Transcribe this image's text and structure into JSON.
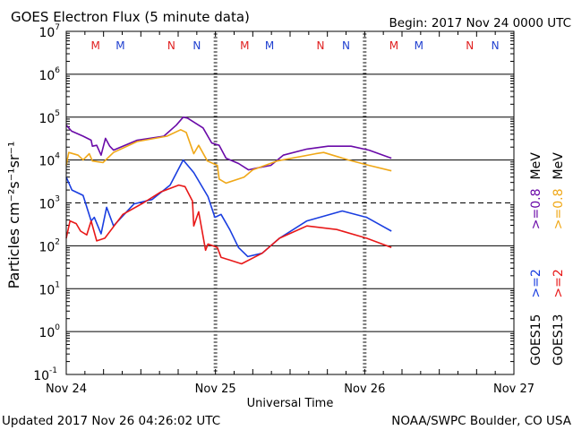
{
  "chart_data": {
    "type": "line",
    "title": "GOES Electron Flux (5 minute data)",
    "begin_label": "Begin: 2017 Nov 24 0000 UTC",
    "xlabel": "Universal Time",
    "ylabel": "Particles cm⁻²s⁻¹sr⁻¹",
    "x_unit": "hours since 2017 Nov 24 0000 UTC",
    "xlim": [
      0,
      72
    ],
    "ylim": [
      0.1,
      10000000
    ],
    "yscale": "log",
    "x_ticks": [
      {
        "hour": 0,
        "label": "Nov 24"
      },
      {
        "hour": 24,
        "label": "Nov 25"
      },
      {
        "hour": 48,
        "label": "Nov 26"
      },
      {
        "hour": 72,
        "label": "Nov 27"
      }
    ],
    "y_ticks": [
      {
        "exp": 7,
        "base": "10",
        "sup": "7"
      },
      {
        "exp": 6,
        "base": "10",
        "sup": "6"
      },
      {
        "exp": 5,
        "base": "10",
        "sup": "5"
      },
      {
        "exp": 4,
        "base": "10",
        "sup": "4"
      },
      {
        "exp": 3,
        "base": "10",
        "sup": "3"
      },
      {
        "exp": 2,
        "base": "10",
        "sup": "2"
      },
      {
        "exp": 1,
        "base": "10",
        "sup": "1"
      },
      {
        "exp": 0,
        "base": "10",
        "sup": "0"
      },
      {
        "exp": -1,
        "base": "10",
        "sup": "-1"
      }
    ],
    "solid_gridlines_exp": [
      6,
      5,
      4,
      2,
      1,
      0
    ],
    "dashed_gridlines_exp": [
      3
    ],
    "markers": [
      {
        "label": "M",
        "hour": 4.7,
        "color": "#e02020"
      },
      {
        "label": "M",
        "hour": 8.7,
        "color": "#2040d0"
      },
      {
        "label": "N",
        "hour": 16.9,
        "color": "#e02020"
      },
      {
        "label": "N",
        "hour": 21.0,
        "color": "#2040d0"
      },
      {
        "label": "M",
        "hour": 28.7,
        "color": "#e02020"
      },
      {
        "label": "M",
        "hour": 32.7,
        "color": "#2040d0"
      },
      {
        "label": "N",
        "hour": 40.9,
        "color": "#e02020"
      },
      {
        "label": "N",
        "hour": 45.0,
        "color": "#2040d0"
      },
      {
        "label": "M",
        "hour": 52.7,
        "color": "#e02020"
      },
      {
        "label": "M",
        "hour": 56.7,
        "color": "#2040d0"
      },
      {
        "label": "N",
        "hour": 64.9,
        "color": "#e02020"
      },
      {
        "label": "N",
        "hour": 69.0,
        "color": "#2040d0"
      }
    ],
    "series": [
      {
        "name": "GOES15 >=0.8 MeV",
        "color": "#6a0aa8",
        "x": [
          0,
          0.86,
          2.7,
          4.0,
          4.2,
          4.9,
          5.6,
          6.3,
          7.0,
          7.6,
          11.4,
          15.7,
          17.7,
          18.8,
          19.5,
          22.0,
          23.4,
          24.6,
          25.7,
          27.7,
          29.3,
          30.6,
          32.9,
          34.9,
          38.7,
          42.1,
          45.8,
          48.7,
          52.3
        ],
        "y": [
          65000.0,
          47000.0,
          36000.0,
          29000.0,
          21000.0,
          22000.0,
          13000.0,
          32000.0,
          21000.0,
          17000.0,
          29000.0,
          36000.0,
          65000.0,
          100000.0,
          95000.0,
          56000.0,
          25000.0,
          22000.0,
          11000.0,
          8300.0,
          5900.0,
          6500.0,
          7500.0,
          13000.0,
          18000.0,
          21000.0,
          21000.0,
          17000.0,
          11000.0
        ]
      },
      {
        "name": "GOES13 >=0.8 MeV",
        "color": "#f0a818",
        "x": [
          0,
          0.4,
          1.9,
          2.7,
          3.7,
          4.2,
          5.9,
          7.6,
          11.4,
          16.2,
          18.4,
          19.3,
          20.5,
          21.3,
          22.7,
          24.3,
          24.6,
          25.7,
          28.6,
          30.0,
          33.9,
          40.1,
          41.4,
          45.4,
          48.7,
          52.3
        ],
        "y": [
          7500.0,
          15000.0,
          13000.0,
          10000.0,
          14000.0,
          9500.0,
          8700.0,
          15000.0,
          27000.0,
          36000.0,
          51000.0,
          44000.0,
          14000.0,
          22000.0,
          9500.0,
          7500.0,
          3600.0,
          2900.0,
          4000.0,
          5900.0,
          9500.0,
          14000.0,
          15000.0,
          10000.0,
          7500.0,
          5600.0
        ]
      },
      {
        "name": "GOES15 >=2 MeV",
        "color": "#1a3ee0",
        "x": [
          0,
          0.9,
          2.7,
          4.0,
          4.5,
          5.6,
          6.5,
          7.6,
          10.9,
          13.8,
          16.7,
          18.8,
          20.5,
          22.8,
          23.9,
          24.9,
          26.3,
          27.7,
          29.2,
          31.5,
          34.3,
          38.7,
          44.4,
          48.3,
          52.3
        ],
        "y": [
          4000.0,
          2000.0,
          1500.0,
          380,
          460,
          190,
          790,
          290,
          950,
          1200,
          2600,
          10000.0,
          5100,
          1400,
          460,
          540,
          240,
          91,
          56,
          67,
          150,
          380,
          650,
          460,
          220
        ]
      },
      {
        "name": "GOES13 >=2 MeV",
        "color": "#e81818",
        "x": [
          0,
          0.6,
          1.6,
          2.3,
          3.3,
          4.0,
          4.9,
          6.2,
          9.1,
          12.4,
          15.2,
          18.1,
          19.1,
          20.3,
          20.5,
          21.3,
          22.4,
          22.8,
          24.3,
          24.9,
          28.2,
          31.5,
          34.3,
          38.7,
          43.5,
          48.3,
          52.3
        ],
        "y": [
          150,
          380,
          330,
          220,
          180,
          380,
          130,
          150,
          540,
          1000,
          1800,
          2600,
          2400,
          1100,
          290,
          620,
          79,
          110,
          91,
          54,
          38,
          67,
          150,
          290,
          240,
          150,
          91
        ]
      }
    ],
    "legend": [
      {
        "satellite": "GOES15",
        "thresholds": [
          {
            "text": ">=2",
            "color": "#1a3ee0"
          },
          {
            "text": ">=0.8",
            "color": "#6a0aa8"
          }
        ],
        "unit": "MeV"
      },
      {
        "satellite": "GOES13",
        "thresholds": [
          {
            "text": ">=2",
            "color": "#e81818"
          },
          {
            "text": ">=0.8",
            "color": "#f0a818"
          }
        ],
        "unit": "MeV"
      }
    ],
    "legend_placement": "right, vertical"
  },
  "footer": {
    "updated": "Updated 2017 Nov 26 04:26:02 UTC",
    "source": "NOAA/SWPC Boulder, CO USA"
  }
}
